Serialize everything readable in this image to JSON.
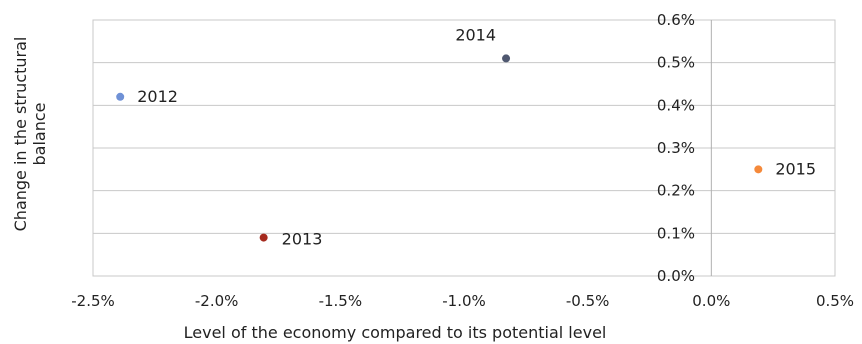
{
  "chart_data": {
    "type": "scatter",
    "xlabel": "Level of the economy compared to its potential level",
    "ylabel": "Change in the structural balance",
    "xlim": [
      -2.5,
      0.5
    ],
    "ylim": [
      0.0,
      0.6
    ],
    "x_ticks": [
      "-2.5%",
      "-2.0%",
      "-1.5%",
      "-1.0%",
      "-0.5%",
      "0.0%",
      "0.5%"
    ],
    "y_ticks": [
      "0.0%",
      "0.1%",
      "0.2%",
      "0.3%",
      "0.4%",
      "0.5%",
      "0.6%"
    ],
    "grid": true,
    "points": [
      {
        "label": "2012",
        "x": -2.39,
        "y": 0.42,
        "color": "#6f91d6"
      },
      {
        "label": "2013",
        "x": -1.81,
        "y": 0.09,
        "color": "#a52a1e"
      },
      {
        "label": "2014",
        "x": -0.83,
        "y": 0.51,
        "color": "#4f5870"
      },
      {
        "label": "2015",
        "x": 0.19,
        "y": 0.25,
        "color": "#f5893a"
      }
    ]
  }
}
